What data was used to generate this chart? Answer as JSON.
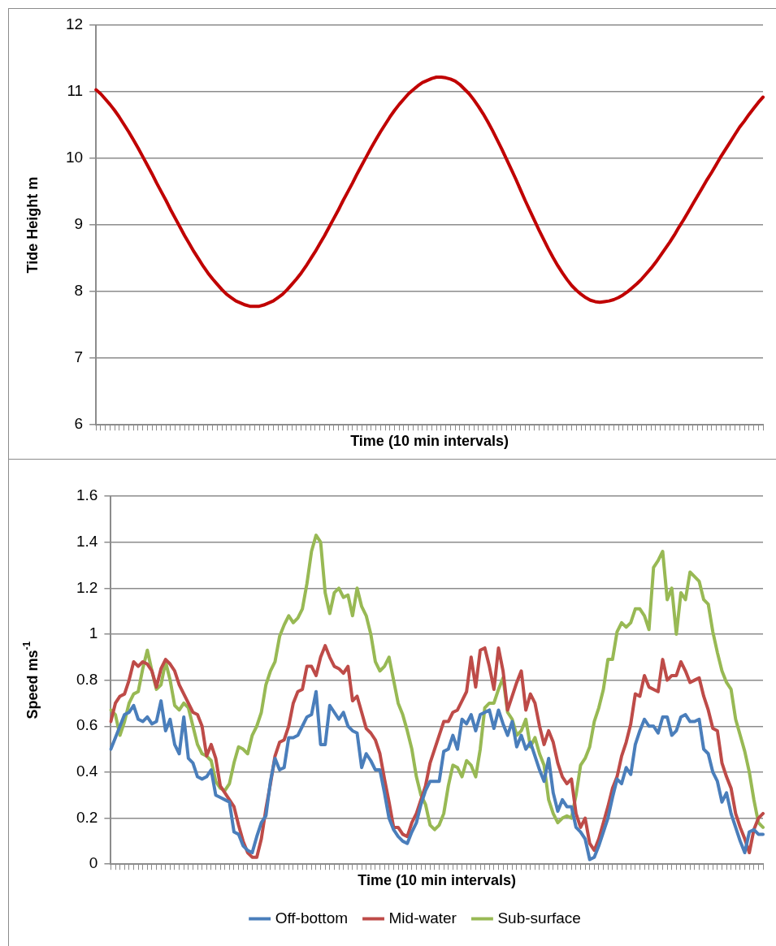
{
  "chart_data": [
    {
      "type": "line",
      "xlabel": "Time (10 min intervals)",
      "ylabel": "Tide Height m",
      "ylim": [
        6,
        12
      ],
      "yticks": [
        6,
        7,
        8,
        9,
        10,
        11,
        12
      ],
      "grid": "y",
      "categories": [
        null,
        null,
        null,
        null,
        null,
        null,
        null,
        null,
        null,
        null,
        null,
        null,
        null,
        null,
        null,
        null,
        null,
        null,
        null,
        null,
        null,
        null,
        null,
        null,
        null,
        null,
        null,
        null,
        null,
        null,
        null,
        null,
        null,
        null,
        null,
        null,
        null,
        null,
        null,
        null,
        null,
        null,
        null,
        null,
        null,
        null,
        null,
        null,
        null,
        null,
        null,
        null,
        null,
        null,
        null,
        null,
        null,
        null,
        null,
        null,
        null,
        null,
        null,
        null,
        null,
        null,
        null,
        null,
        null,
        null,
        null,
        null,
        null,
        null,
        null,
        null,
        null,
        null,
        null,
        null,
        null,
        null,
        null,
        null,
        null,
        null,
        null,
        null,
        null,
        null,
        null,
        null,
        null,
        null,
        null,
        null,
        null,
        null,
        null,
        null,
        null,
        null,
        null,
        null,
        null,
        null,
        null,
        null,
        null,
        null,
        null,
        null,
        null,
        null,
        null,
        null,
        null,
        null,
        null,
        null,
        null,
        null,
        null,
        null,
        null,
        null,
        null,
        null,
        null,
        null,
        null,
        null,
        null,
        null,
        null,
        null,
        null,
        null,
        null,
        null,
        null,
        null,
        null,
        null
      ],
      "series": [
        {
          "color": "#c00000",
          "values": [
            11.03,
            10.97,
            10.89,
            10.81,
            10.72,
            10.62,
            10.51,
            10.4,
            10.28,
            10.16,
            10.03,
            9.9,
            9.77,
            9.63,
            9.5,
            9.37,
            9.23,
            9.1,
            8.97,
            8.84,
            8.72,
            8.6,
            8.49,
            8.38,
            8.28,
            8.19,
            8.11,
            8.03,
            7.96,
            7.91,
            7.86,
            7.83,
            7.8,
            7.78,
            7.78,
            7.78,
            7.8,
            7.83,
            7.86,
            7.91,
            7.96,
            8.03,
            8.11,
            8.19,
            8.28,
            8.38,
            8.49,
            8.6,
            8.72,
            8.84,
            8.97,
            9.1,
            9.23,
            9.37,
            9.5,
            9.63,
            9.77,
            9.9,
            10.03,
            10.16,
            10.28,
            10.4,
            10.51,
            10.62,
            10.72,
            10.81,
            10.89,
            10.97,
            11.03,
            11.09,
            11.14,
            11.17,
            11.2,
            11.22,
            11.22,
            11.21,
            11.19,
            11.16,
            11.11,
            11.04,
            10.97,
            10.88,
            10.78,
            10.67,
            10.55,
            10.42,
            10.28,
            10.14,
            9.99,
            9.84,
            9.69,
            9.53,
            9.37,
            9.22,
            9.07,
            8.92,
            8.78,
            8.64,
            8.51,
            8.39,
            8.28,
            8.18,
            8.09,
            8.02,
            7.96,
            7.91,
            7.87,
            7.85,
            7.84,
            7.85,
            7.86,
            7.88,
            7.91,
            7.95,
            8.0,
            8.06,
            8.12,
            8.19,
            8.27,
            8.35,
            8.44,
            8.54,
            8.64,
            8.74,
            8.85,
            8.97,
            9.08,
            9.2,
            9.32,
            9.44,
            9.56,
            9.68,
            9.79,
            9.91,
            10.03,
            10.14,
            10.25,
            10.36,
            10.47,
            10.56,
            10.66,
            10.75,
            10.84,
            10.92
          ]
        }
      ]
    },
    {
      "type": "line",
      "xlabel": "Time (10 min intervals)",
      "ylabel": "Speed ms$^{-1}$",
      "ylim": [
        0,
        1.6
      ],
      "yticks": [
        0,
        0.2,
        0.4,
        0.6,
        0.8,
        1,
        1.2,
        1.4,
        1.6
      ],
      "grid": "y",
      "legend": "bottom",
      "categories": [
        null,
        null,
        null,
        null,
        null,
        null,
        null,
        null,
        null,
        null,
        null,
        null,
        null,
        null,
        null,
        null,
        null,
        null,
        null,
        null,
        null,
        null,
        null,
        null,
        null,
        null,
        null,
        null,
        null,
        null,
        null,
        null,
        null,
        null,
        null,
        null,
        null,
        null,
        null,
        null,
        null,
        null,
        null,
        null,
        null,
        null,
        null,
        null,
        null,
        null,
        null,
        null,
        null,
        null,
        null,
        null,
        null,
        null,
        null,
        null,
        null,
        null,
        null,
        null,
        null,
        null,
        null,
        null,
        null,
        null,
        null,
        null,
        null,
        null,
        null,
        null,
        null,
        null,
        null,
        null,
        null,
        null,
        null,
        null,
        null,
        null,
        null,
        null,
        null,
        null,
        null,
        null,
        null,
        null,
        null,
        null,
        null,
        null,
        null,
        null,
        null,
        null,
        null,
        null,
        null,
        null,
        null,
        null,
        null,
        null,
        null,
        null,
        null,
        null,
        null,
        null,
        null,
        null,
        null,
        null,
        null,
        null,
        null,
        null,
        null,
        null,
        null,
        null,
        null,
        null,
        null,
        null,
        null,
        null,
        null,
        null,
        null,
        null,
        null,
        null,
        null,
        null,
        null,
        null
      ],
      "series": [
        {
          "name": "Off-bottom",
          "color": "#4a7ebb",
          "values": [
            0.5,
            0.55,
            0.6,
            0.65,
            0.66,
            0.69,
            0.63,
            0.62,
            0.64,
            0.61,
            0.62,
            0.71,
            0.58,
            0.63,
            0.52,
            0.48,
            0.64,
            0.46,
            0.44,
            0.38,
            0.37,
            0.38,
            0.41,
            0.3,
            0.29,
            0.28,
            0.27,
            0.14,
            0.13,
            0.08,
            0.06,
            0.05,
            0.12,
            0.18,
            0.21,
            0.36,
            0.46,
            0.41,
            0.42,
            0.55,
            0.55,
            0.56,
            0.6,
            0.64,
            0.65,
            0.75,
            0.52,
            0.52,
            0.69,
            0.66,
            0.63,
            0.66,
            0.6,
            0.58,
            0.57,
            0.42,
            0.48,
            0.45,
            0.41,
            0.41,
            0.31,
            0.2,
            0.15,
            0.12,
            0.1,
            0.09,
            0.14,
            0.18,
            0.26,
            0.32,
            0.36,
            0.36,
            0.36,
            0.49,
            0.5,
            0.56,
            0.5,
            0.63,
            0.61,
            0.65,
            0.58,
            0.65,
            0.66,
            0.67,
            0.59,
            0.67,
            0.61,
            0.56,
            0.62,
            0.51,
            0.56,
            0.5,
            0.53,
            0.47,
            0.41,
            0.36,
            0.46,
            0.31,
            0.23,
            0.28,
            0.25,
            0.25,
            0.16,
            0.14,
            0.11,
            0.02,
            0.03,
            0.08,
            0.14,
            0.2,
            0.29,
            0.37,
            0.35,
            0.42,
            0.39,
            0.52,
            0.58,
            0.63,
            0.6,
            0.6,
            0.57,
            0.64,
            0.64,
            0.56,
            0.58,
            0.64,
            0.65,
            0.62,
            0.62,
            0.63,
            0.5,
            0.48,
            0.4,
            0.36,
            0.27,
            0.31,
            0.22,
            0.16,
            0.1,
            0.05,
            0.14,
            0.15,
            0.13,
            0.13
          ]
        },
        {
          "name": "Mid-water",
          "color": "#be4b48",
          "values": [
            0.62,
            0.7,
            0.73,
            0.74,
            0.8,
            0.88,
            0.86,
            0.88,
            0.87,
            0.84,
            0.77,
            0.85,
            0.89,
            0.87,
            0.84,
            0.78,
            0.74,
            0.7,
            0.66,
            0.65,
            0.6,
            0.47,
            0.52,
            0.46,
            0.34,
            0.31,
            0.28,
            0.25,
            0.17,
            0.1,
            0.05,
            0.03,
            0.03,
            0.11,
            0.24,
            0.35,
            0.47,
            0.53,
            0.54,
            0.6,
            0.7,
            0.75,
            0.76,
            0.86,
            0.86,
            0.82,
            0.9,
            0.95,
            0.9,
            0.86,
            0.85,
            0.83,
            0.86,
            0.71,
            0.73,
            0.66,
            0.59,
            0.57,
            0.54,
            0.48,
            0.37,
            0.27,
            0.16,
            0.16,
            0.13,
            0.12,
            0.18,
            0.22,
            0.28,
            0.34,
            0.44,
            0.5,
            0.56,
            0.62,
            0.62,
            0.66,
            0.67,
            0.71,
            0.75,
            0.9,
            0.77,
            0.93,
            0.94,
            0.86,
            0.76,
            0.94,
            0.84,
            0.67,
            0.73,
            0.79,
            0.84,
            0.67,
            0.74,
            0.7,
            0.6,
            0.52,
            0.58,
            0.53,
            0.44,
            0.38,
            0.35,
            0.37,
            0.22,
            0.16,
            0.2,
            0.09,
            0.06,
            0.11,
            0.18,
            0.25,
            0.33,
            0.38,
            0.47,
            0.53,
            0.61,
            0.74,
            0.73,
            0.82,
            0.77,
            0.76,
            0.75,
            0.89,
            0.8,
            0.82,
            0.82,
            0.88,
            0.84,
            0.79,
            0.8,
            0.81,
            0.73,
            0.67,
            0.59,
            0.58,
            0.44,
            0.38,
            0.33,
            0.22,
            0.16,
            0.11,
            0.05,
            0.15,
            0.2,
            0.22
          ]
        },
        {
          "name": "Sub-surface",
          "color": "#98b954",
          "values": [
            0.67,
            0.65,
            0.56,
            0.62,
            0.7,
            0.74,
            0.75,
            0.85,
            0.93,
            0.84,
            0.76,
            0.78,
            0.88,
            0.8,
            0.69,
            0.67,
            0.7,
            0.68,
            0.6,
            0.52,
            0.48,
            0.47,
            0.45,
            0.36,
            0.33,
            0.32,
            0.35,
            0.44,
            0.51,
            0.5,
            0.48,
            0.56,
            0.6,
            0.66,
            0.78,
            0.84,
            0.88,
            0.99,
            1.04,
            1.08,
            1.05,
            1.07,
            1.11,
            1.22,
            1.36,
            1.43,
            1.4,
            1.18,
            1.09,
            1.18,
            1.2,
            1.16,
            1.17,
            1.08,
            1.2,
            1.12,
            1.08,
            1.0,
            0.88,
            0.84,
            0.86,
            0.9,
            0.8,
            0.7,
            0.65,
            0.58,
            0.5,
            0.38,
            0.3,
            0.26,
            0.17,
            0.15,
            0.17,
            0.22,
            0.34,
            0.43,
            0.42,
            0.38,
            0.45,
            0.43,
            0.38,
            0.5,
            0.68,
            0.7,
            0.7,
            0.76,
            0.81,
            0.66,
            0.63,
            0.56,
            0.58,
            0.63,
            0.51,
            0.55,
            0.48,
            0.43,
            0.28,
            0.22,
            0.18,
            0.2,
            0.21,
            0.2,
            0.3,
            0.43,
            0.46,
            0.51,
            0.62,
            0.68,
            0.76,
            0.89,
            0.89,
            1.01,
            1.05,
            1.03,
            1.05,
            1.11,
            1.11,
            1.08,
            1.02,
            1.29,
            1.32,
            1.36,
            1.15,
            1.2,
            1.0,
            1.18,
            1.15,
            1.27,
            1.25,
            1.23,
            1.15,
            1.13,
            1.01,
            0.92,
            0.84,
            0.79,
            0.76,
            0.63,
            0.56,
            0.49,
            0.4,
            0.28,
            0.18,
            0.16
          ]
        }
      ]
    }
  ]
}
